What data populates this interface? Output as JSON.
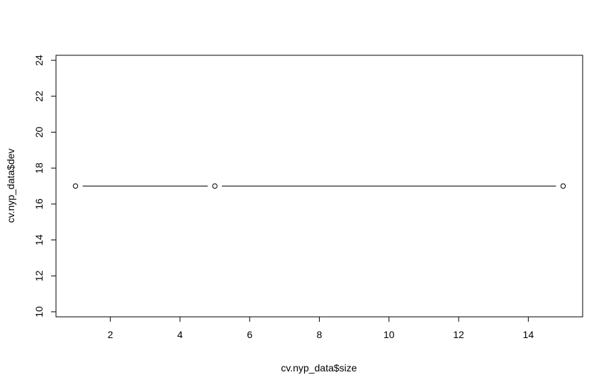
{
  "chart_data": {
    "type": "line",
    "xlabel": "cv.nyp_data$size",
    "ylabel": "cv.nyp_data$dev",
    "x": [
      1,
      5,
      15
    ],
    "series": [
      {
        "values": [
          17,
          17,
          17
        ]
      }
    ],
    "xlim": [
      0.44,
      15.56
    ],
    "ylim": [
      9.72,
      24.28
    ],
    "xticks": [
      "2",
      "4",
      "6",
      "8",
      "10",
      "12",
      "14"
    ],
    "yticks": [
      "10",
      "12",
      "14",
      "16",
      "18",
      "20",
      "22",
      "24"
    ],
    "grid": false,
    "marker": "open-circle",
    "line_color": "#000000"
  }
}
